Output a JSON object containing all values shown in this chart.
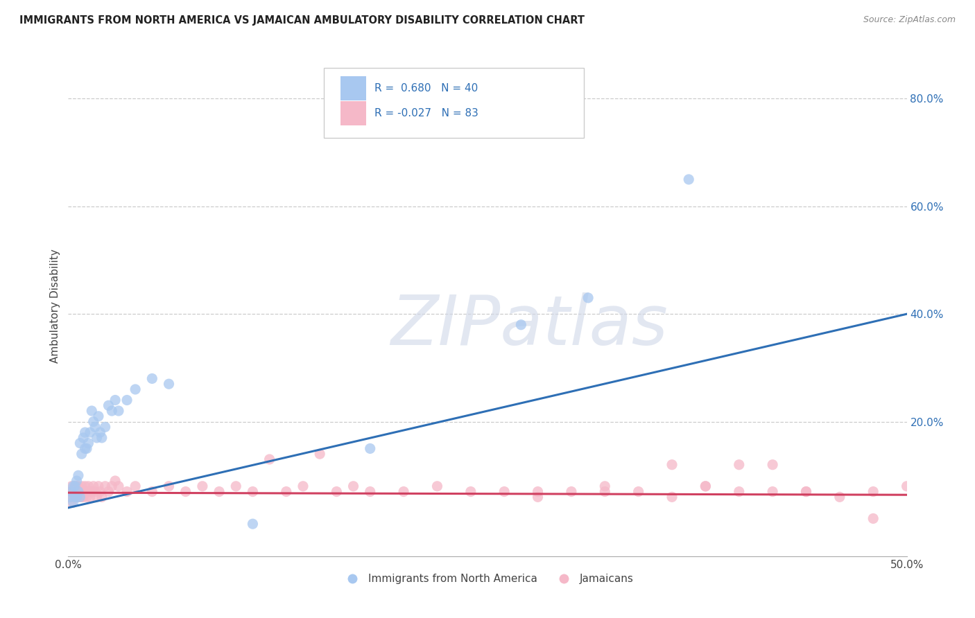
{
  "title": "IMMIGRANTS FROM NORTH AMERICA VS JAMAICAN AMBULATORY DISABILITY CORRELATION CHART",
  "source": "Source: ZipAtlas.com",
  "ylabel": "Ambulatory Disability",
  "right_yticks": [
    "80.0%",
    "60.0%",
    "40.0%",
    "20.0%"
  ],
  "right_ytick_vals": [
    0.8,
    0.6,
    0.4,
    0.2
  ],
  "xlim": [
    0.0,
    0.5
  ],
  "ylim": [
    -0.05,
    0.88
  ],
  "blue_R": "0.680",
  "blue_N": "40",
  "pink_R": "-0.027",
  "pink_N": "83",
  "blue_color": "#A8C8F0",
  "pink_color": "#F5B8C8",
  "blue_line_color": "#2E6FB5",
  "pink_line_color": "#D04060",
  "legend_label_blue": "Immigrants from North America",
  "legend_label_pink": "Jamaicans",
  "watermark": "ZIPatlas",
  "blue_scatter_x": [
    0.001,
    0.002,
    0.003,
    0.003,
    0.004,
    0.004,
    0.005,
    0.005,
    0.006,
    0.006,
    0.007,
    0.007,
    0.008,
    0.009,
    0.01,
    0.01,
    0.011,
    0.012,
    0.013,
    0.014,
    0.015,
    0.016,
    0.017,
    0.018,
    0.019,
    0.02,
    0.022,
    0.024,
    0.026,
    0.028,
    0.03,
    0.035,
    0.04,
    0.05,
    0.06,
    0.11,
    0.18,
    0.27,
    0.31,
    0.37
  ],
  "blue_scatter_y": [
    0.06,
    0.07,
    0.05,
    0.08,
    0.06,
    0.08,
    0.06,
    0.09,
    0.07,
    0.1,
    0.16,
    0.06,
    0.14,
    0.17,
    0.15,
    0.18,
    0.15,
    0.16,
    0.18,
    0.22,
    0.2,
    0.19,
    0.17,
    0.21,
    0.18,
    0.17,
    0.19,
    0.23,
    0.22,
    0.24,
    0.22,
    0.24,
    0.26,
    0.28,
    0.27,
    0.01,
    0.15,
    0.38,
    0.43,
    0.65
  ],
  "pink_scatter_x": [
    0.001,
    0.001,
    0.002,
    0.002,
    0.003,
    0.003,
    0.004,
    0.004,
    0.004,
    0.005,
    0.005,
    0.005,
    0.006,
    0.006,
    0.006,
    0.007,
    0.007,
    0.007,
    0.008,
    0.008,
    0.008,
    0.009,
    0.009,
    0.01,
    0.01,
    0.011,
    0.011,
    0.012,
    0.012,
    0.013,
    0.013,
    0.014,
    0.015,
    0.016,
    0.017,
    0.018,
    0.019,
    0.02,
    0.022,
    0.024,
    0.026,
    0.028,
    0.03,
    0.035,
    0.04,
    0.05,
    0.06,
    0.07,
    0.08,
    0.09,
    0.1,
    0.11,
    0.12,
    0.13,
    0.14,
    0.15,
    0.16,
    0.17,
    0.18,
    0.2,
    0.22,
    0.24,
    0.26,
    0.28,
    0.3,
    0.32,
    0.34,
    0.36,
    0.38,
    0.4,
    0.42,
    0.44,
    0.46,
    0.48,
    0.5,
    0.36,
    0.38,
    0.4,
    0.42,
    0.44,
    0.32,
    0.28,
    0.48
  ],
  "pink_scatter_y": [
    0.06,
    0.07,
    0.05,
    0.08,
    0.06,
    0.07,
    0.06,
    0.07,
    0.08,
    0.07,
    0.06,
    0.08,
    0.07,
    0.06,
    0.08,
    0.07,
    0.06,
    0.07,
    0.06,
    0.07,
    0.08,
    0.07,
    0.06,
    0.07,
    0.08,
    0.07,
    0.06,
    0.07,
    0.08,
    0.07,
    0.06,
    0.07,
    0.08,
    0.07,
    0.06,
    0.08,
    0.07,
    0.06,
    0.08,
    0.07,
    0.08,
    0.09,
    0.08,
    0.07,
    0.08,
    0.07,
    0.08,
    0.07,
    0.08,
    0.07,
    0.08,
    0.07,
    0.13,
    0.07,
    0.08,
    0.14,
    0.07,
    0.08,
    0.07,
    0.07,
    0.08,
    0.07,
    0.07,
    0.06,
    0.07,
    0.08,
    0.07,
    0.06,
    0.08,
    0.07,
    0.07,
    0.07,
    0.06,
    0.07,
    0.08,
    0.12,
    0.08,
    0.12,
    0.12,
    0.07,
    0.07,
    0.07,
    0.02
  ],
  "blue_line_x0": 0.0,
  "blue_line_y0": 0.04,
  "blue_line_x1": 0.5,
  "blue_line_y1": 0.4,
  "pink_line_x0": 0.0,
  "pink_line_y0": 0.068,
  "pink_line_x1": 0.5,
  "pink_line_y1": 0.064,
  "grid_color": "#CCCCCC",
  "grid_ytick_vals": [
    0.2,
    0.4,
    0.6,
    0.8
  ],
  "xtick_positions": [
    0.0,
    0.5
  ],
  "xtick_labels": [
    "0.0%",
    "50.0%"
  ]
}
